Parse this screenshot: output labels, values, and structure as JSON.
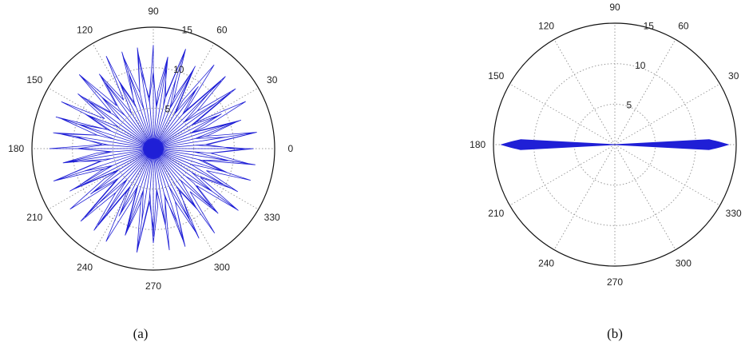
{
  "chart_data": [
    {
      "type": "polar",
      "caption": "(a)",
      "angle_ticks": [
        "0",
        "30",
        "60",
        "90",
        "120",
        "150",
        "180",
        "210",
        "240",
        "270",
        "300",
        "330"
      ],
      "radial_ticks": [
        "5",
        "10",
        "15"
      ],
      "rlim": [
        0,
        15
      ],
      "grid": true,
      "series_color": "#1f1fd6",
      "series": [
        {
          "pattern": "star spokes oscillating between inner and outer radius",
          "r_inner": 0,
          "r_outer": [
            9,
            13
          ],
          "spokes": 60
        }
      ]
    },
    {
      "type": "polar",
      "caption": "(b)",
      "angle_ticks": [
        "0",
        "30",
        "60",
        "90",
        "120",
        "150",
        "180",
        "210",
        "240",
        "270",
        "300",
        "330"
      ],
      "radial_ticks": [
        "5",
        "10",
        "15"
      ],
      "rlim": [
        0,
        15
      ],
      "grid": true,
      "series_color": "#1f1fd6",
      "series": [
        {
          "pattern": "narrow lobes along 0 and 180 degrees",
          "r_max": 14,
          "half_width_deg": 3
        }
      ]
    }
  ]
}
